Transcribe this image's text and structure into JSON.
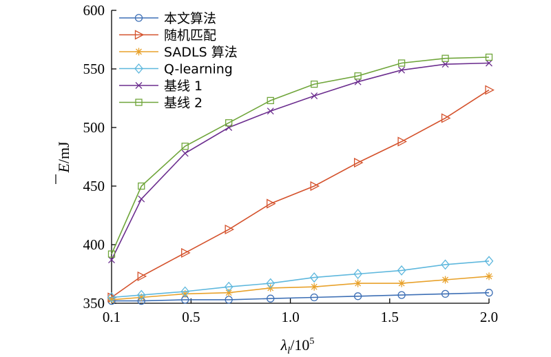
{
  "chart_data": {
    "type": "line",
    "x": [
      0.1,
      0.25,
      0.47,
      0.69,
      0.9,
      1.12,
      1.34,
      1.56,
      1.78,
      2.0
    ],
    "x_ticks": [
      "0.1",
      "0.5",
      "1.0",
      "1.5",
      "2.0"
    ],
    "x_tick_values": [
      0.1,
      0.5,
      1.0,
      1.5,
      2.0
    ],
    "y_ticks": [
      "350",
      "400",
      "450",
      "500",
      "550",
      "600"
    ],
    "y_tick_values": [
      350,
      400,
      450,
      500,
      550,
      600
    ],
    "xlim": [
      0.1,
      2.0
    ],
    "ylim": [
      350,
      600
    ],
    "xlabel_main": "λ",
    "xlabel_sub": "l",
    "xlabel_rest": "/10",
    "xlabel_sup": "5",
    "ylabel_main": "E",
    "ylabel_rest": "/mJ",
    "legend_position": "top-left",
    "grid": false,
    "series": [
      {
        "name": "本文算法",
        "color": "#3d6fb5",
        "marker": "circle",
        "values": [
          352,
          352,
          353,
          353,
          354,
          355,
          356,
          357,
          358,
          359
        ]
      },
      {
        "name": "随机匹配",
        "color": "#d4512b",
        "marker": "triangle-right",
        "values": [
          355,
          373,
          393,
          413,
          435,
          450,
          470,
          488,
          508,
          532
        ]
      },
      {
        "name": "SADLS 算法",
        "color": "#e8a12a",
        "marker": "star",
        "values": [
          353,
          355,
          358,
          359,
          363,
          364,
          367,
          367,
          370,
          373
        ]
      },
      {
        "name": "Q-learning",
        "color": "#5db7dd",
        "marker": "diamond",
        "values": [
          355,
          357,
          360,
          364,
          367,
          372,
          375,
          378,
          383,
          386
        ]
      },
      {
        "name": "基线 1",
        "color": "#6b2d8e",
        "marker": "x",
        "values": [
          387,
          439,
          478,
          500,
          514,
          527,
          539,
          549,
          554,
          555
        ]
      },
      {
        "name": "基线 2",
        "color": "#6fa53a",
        "marker": "square",
        "values": [
          392,
          450,
          484,
          504,
          523,
          537,
          544,
          555,
          559,
          560
        ]
      }
    ]
  }
}
